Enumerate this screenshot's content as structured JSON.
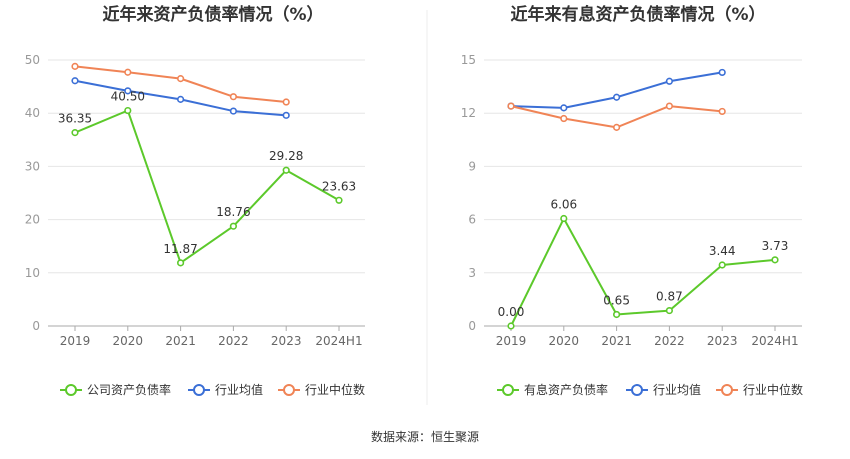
{
  "source_text": "数据来源：恒生聚源",
  "colors": {
    "company": "#5cc92b",
    "industry_avg": "#3b6fd6",
    "industry_median": "#f08456",
    "grid": "#e6e6e6",
    "axis": "#999999",
    "divider": "#eeeeee"
  },
  "chart_data": [
    {
      "type": "line",
      "title": "近年来资产负债率情况（%）",
      "categories": [
        "2019",
        "2020",
        "2021",
        "2022",
        "2023",
        "2024H1"
      ],
      "ylim": [
        0,
        50
      ],
      "yticks": [
        0,
        10,
        20,
        30,
        40,
        50
      ],
      "grid": true,
      "legend_position": "bottom",
      "series": [
        {
          "name": "公司资产负债率",
          "color_key": "company",
          "values": [
            36.35,
            40.5,
            11.87,
            18.76,
            29.28,
            23.63
          ],
          "labels": [
            "36.35",
            "40.50",
            "11.87",
            "18.76",
            "29.28",
            "23.63"
          ]
        },
        {
          "name": "行业均值",
          "color_key": "industry_avg",
          "values": [
            46.1,
            44.2,
            42.6,
            40.4,
            39.6,
            null
          ]
        },
        {
          "name": "行业中位数",
          "color_key": "industry_median",
          "values": [
            48.8,
            47.7,
            46.5,
            43.1,
            42.1,
            null
          ]
        }
      ]
    },
    {
      "type": "line",
      "title": "近年来有息资产负债率情况（%）",
      "categories": [
        "2019",
        "2020",
        "2021",
        "2022",
        "2023",
        "2024H1"
      ],
      "ylim": [
        0,
        15
      ],
      "yticks": [
        0,
        3,
        6,
        9,
        12,
        15
      ],
      "grid": true,
      "legend_position": "bottom",
      "series": [
        {
          "name": "有息资产负债率",
          "color_key": "company",
          "values": [
            0.0,
            6.06,
            0.65,
            0.87,
            3.44,
            3.73
          ],
          "labels": [
            "0.00",
            "6.06",
            "0.65",
            "0.87",
            "3.44",
            "3.73"
          ]
        },
        {
          "name": "行业均值",
          "color_key": "industry_avg",
          "values": [
            12.4,
            12.3,
            12.9,
            13.8,
            14.3,
            null
          ]
        },
        {
          "name": "行业中位数",
          "color_key": "industry_median",
          "values": [
            12.4,
            11.7,
            11.2,
            12.4,
            12.1,
            null
          ]
        }
      ]
    }
  ]
}
